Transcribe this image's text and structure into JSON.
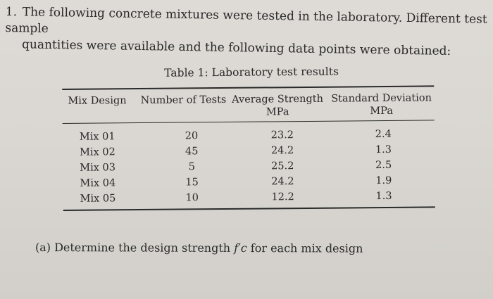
{
  "question": {
    "number": "1.",
    "line1": "The following concrete mixtures were tested in the laboratory. Different test sample",
    "line2": "quantities were available and the following data points were obtained:"
  },
  "table": {
    "caption": "Table 1: Laboratory test results",
    "headers": [
      "Mix Design",
      "Number of Tests",
      "Average Strength",
      "Standard Deviation"
    ],
    "units": [
      "",
      "",
      "MPa",
      "MPa"
    ],
    "rows": [
      [
        "Mix 01",
        "20",
        "23.2",
        "2.4"
      ],
      [
        "Mix 02",
        "45",
        "24.2",
        "1.3"
      ],
      [
        "Mix 03",
        "5",
        "25.2",
        "2.5"
      ],
      [
        "Mix 04",
        "15",
        "24.2",
        "1.9"
      ],
      [
        "Mix 05",
        "10",
        "12.2",
        "1.3"
      ]
    ]
  },
  "part_a": {
    "label": "(a)",
    "text": "Determine the design strength",
    "symbol": "f′c",
    "suffix": "for each mix design"
  }
}
